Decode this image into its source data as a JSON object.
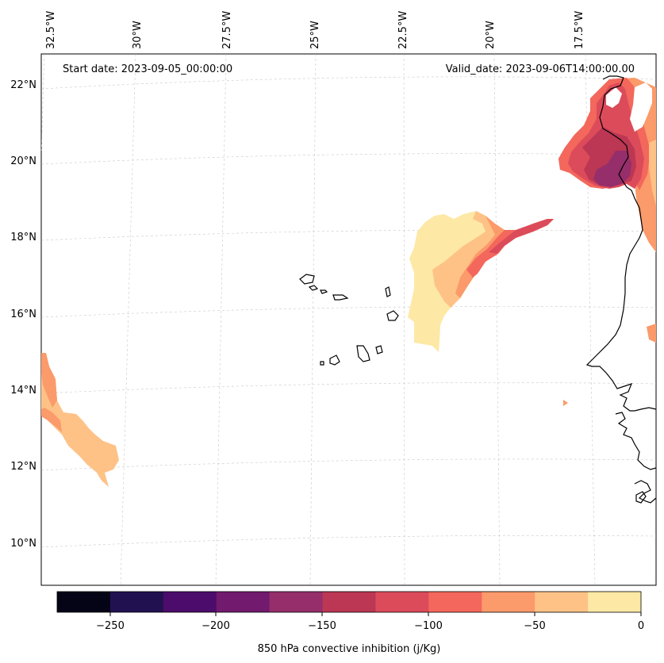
{
  "map": {
    "start_label": "Start date: 2023-09-05_00:00:00",
    "valid_label": "Valid_date: 2023-09-06T14:00:00.00",
    "lon_labels": [
      "32.5°W",
      "30°W",
      "27.5°W",
      "25°W",
      "22.5°W",
      "20°W",
      "17.5°W"
    ],
    "lat_labels": [
      "22°N",
      "20°N",
      "18°N",
      "16°N",
      "14°N",
      "12°N",
      "10°N"
    ],
    "colorbar": {
      "label": "850 hPa convective inhibition (j/Kg)",
      "ticks": [
        "−250",
        "−200",
        "−150",
        "−100",
        "−50",
        "0"
      ],
      "colors": [
        "#050416",
        "#221150",
        "#4b0c6b",
        "#721a6e",
        "#952e6a",
        "#bb3754",
        "#dc4b5a",
        "#f3675c",
        "#fb9a6a",
        "#fec287",
        "#fde8a5"
      ]
    },
    "fill_colors": {
      "lightest": "#fde8a5",
      "light": "#fec287",
      "orange": "#fb9a6a",
      "coral": "#f3675c",
      "red": "#dc4b5a",
      "magenta": "#bb3754",
      "purple": "#952e6a"
    }
  }
}
